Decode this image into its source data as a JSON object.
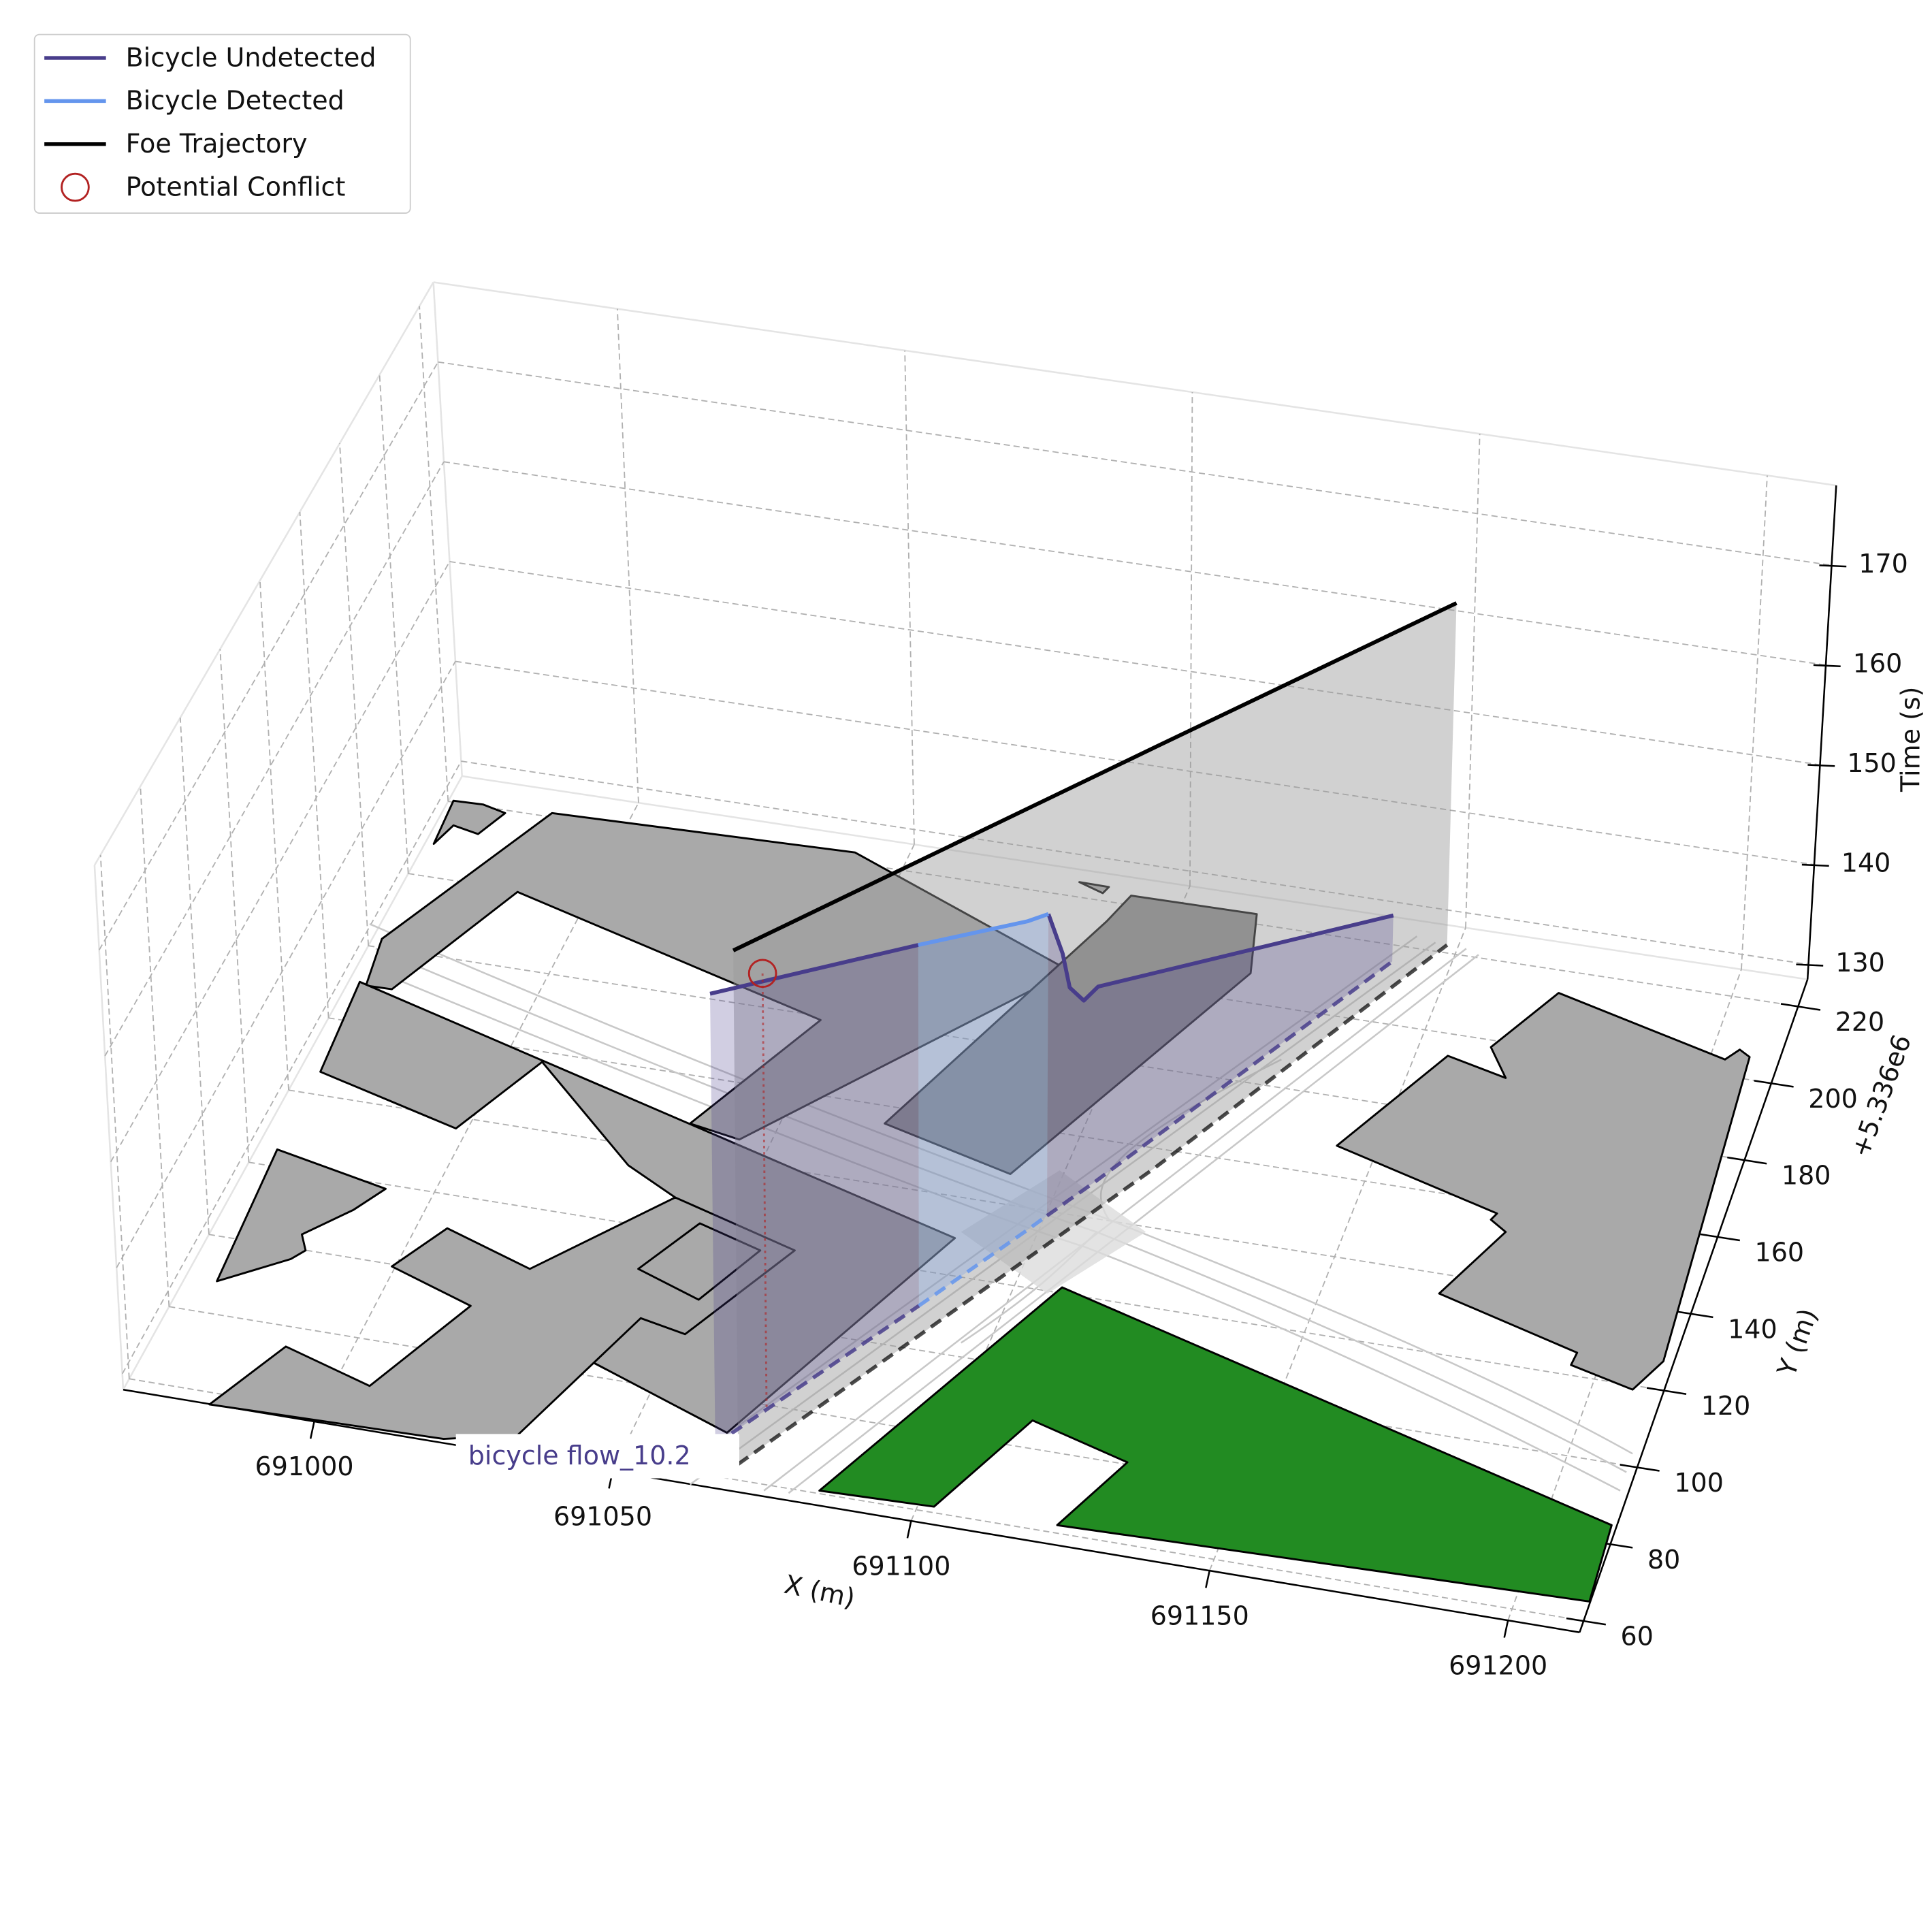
{
  "chart_data": {
    "type": "line3d",
    "xlabel": "X (m)",
    "ylabel": "Y (m)",
    "zlabel": "Time (s)",
    "y_offset_label": "+5.336e6",
    "annotation": "bicycle flow_10.2",
    "xlim": [
      690968,
      691212
    ],
    "ylim": [
      57,
      227
    ],
    "zlim": [
      128.5,
      178
    ],
    "xticks": [
      691000,
      691050,
      691100,
      691150,
      691200
    ],
    "yticks": [
      60,
      80,
      100,
      120,
      140,
      160,
      180,
      200,
      220
    ],
    "zticks": [
      130,
      140,
      150,
      160,
      170
    ],
    "grid": true,
    "legend_loc": "upper left",
    "series": [
      {
        "name": "Bicycle Undetected",
        "color": "#483d8b",
        "x": [
          691064,
          691086.1,
          null,
          691100.3,
          691101.9,
          691102.7,
          691104.3,
          691105.9,
          691139.8
        ],
        "y": [
          68,
          111.1,
          null,
          138.8,
          141.9,
          143.5,
          146.5,
          149.6,
          215.8
        ],
        "z": [
          171.2,
          163.2,
          null,
          157.8,
          153,
          149.2,
          147,
          147.4,
          133.1
        ]
      },
      {
        "name": "Bicycle Detected",
        "color": "#6495ed",
        "x": [
          691086.1,
          691098,
          691100.3
        ],
        "y": [
          111.1,
          134.2,
          138.8
        ],
        "z": [
          163.2,
          158.5,
          157.8
        ]
      },
      {
        "name": "Foe Trajectory",
        "color": "#000000",
        "x": [
          691069,
          691114.5,
          691148
        ],
        "y": [
          64,
          155,
          222
        ],
        "z": [
          177.1,
          169.8,
          162.7
        ]
      }
    ],
    "conflict": {
      "name": "Potential Conflict",
      "color": "#b22222",
      "x": [
        691069.5
      ],
      "y": [
        78.8
      ],
      "z": [
        170
      ]
    }
  }
}
